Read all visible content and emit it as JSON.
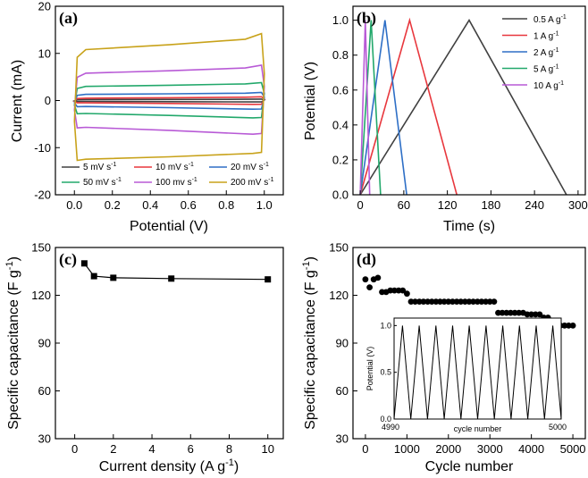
{
  "chart_data": [
    {
      "id": "a",
      "panel_label": "(a)",
      "type": "line",
      "title": "",
      "xlabel": "Potential (V)",
      "ylabel": "Current (mA)",
      "xlim": [
        -0.1,
        1.1
      ],
      "ylim": [
        -20,
        20
      ],
      "xticks": [
        0.0,
        0.2,
        0.4,
        0.6,
        0.8,
        1.0
      ],
      "xtick_labels": [
        "0.0",
        "0.2",
        "0.4",
        "0.6",
        "0.8",
        "1.0"
      ],
      "yticks": [
        -20,
        -10,
        0,
        10,
        20
      ],
      "ytick_labels": [
        "-20",
        "-10",
        "0",
        "10",
        "20"
      ],
      "legend_position": "bottom",
      "series": [
        {
          "name": "5 mV s⁻¹",
          "color": "#404040",
          "upper": [
            0.2,
            0.3
          ],
          "lower": [
            -0.2,
            -0.3
          ]
        },
        {
          "name": "10 mV s⁻¹",
          "color": "#e8373d",
          "upper": [
            0.5,
            0.8
          ],
          "lower": [
            -0.5,
            -0.8
          ]
        },
        {
          "name": "20 mV s⁻¹",
          "color": "#2e6fc6",
          "upper": [
            1.3,
            1.7
          ],
          "lower": [
            -1.3,
            -1.8
          ]
        },
        {
          "name": "50 mV s⁻¹",
          "color": "#22a86b",
          "upper": [
            3.0,
            3.8
          ],
          "lower": [
            -2.8,
            -3.6
          ]
        },
        {
          "name": "100 mv s⁻¹",
          "color": "#b85ad6",
          "upper": [
            5.8,
            7.5
          ],
          "lower": [
            -5.8,
            -7.0
          ]
        },
        {
          "name": "200 mV s⁻¹",
          "color": "#c8a21a",
          "upper": [
            10.8,
            14.2
          ],
          "lower": [
            -12.7,
            -11.0
          ]
        }
      ]
    },
    {
      "id": "b",
      "panel_label": "(b)",
      "type": "line",
      "title": "",
      "xlabel": "Time (s)",
      "ylabel": "Potential (V)",
      "xlim": [
        -10,
        310
      ],
      "ylim": [
        0,
        1.08
      ],
      "xticks": [
        0,
        60,
        120,
        180,
        240,
        300
      ],
      "xtick_labels": [
        "0",
        "60",
        "120",
        "180",
        "240",
        "300"
      ],
      "yticks": [
        0.0,
        0.2,
        0.4,
        0.6,
        0.8,
        1.0
      ],
      "ytick_labels": [
        "0.0",
        "0.2",
        "0.4",
        "0.6",
        "0.8",
        "1.0"
      ],
      "legend_position": "top-right",
      "series": [
        {
          "name": "0.5 A g⁻¹",
          "color": "#404040",
          "charge_end_s": 150,
          "discharge_end_s": 284
        },
        {
          "name": "1 A g⁻¹",
          "color": "#e8373d",
          "charge_end_s": 68,
          "discharge_end_s": 133
        },
        {
          "name": "2 A g⁻¹",
          "color": "#2e6fc6",
          "charge_end_s": 34,
          "discharge_end_s": 64
        },
        {
          "name": "5 A g⁻¹",
          "color": "#22a86b",
          "charge_end_s": 15,
          "discharge_end_s": 28
        },
        {
          "name": "10 A g⁻¹",
          "color": "#b85ad6",
          "charge_end_s": 7,
          "discharge_end_s": 13
        }
      ]
    },
    {
      "id": "c",
      "panel_label": "(c)",
      "type": "line",
      "title": "",
      "xlabel": "Current density (A g⁻¹)",
      "ylabel": "Specific capacitance (F g⁻¹)",
      "xlim": [
        -1,
        10.8
      ],
      "ylim": [
        30,
        150
      ],
      "xticks": [
        0,
        2,
        4,
        6,
        8,
        10
      ],
      "xtick_labels": [
        "0",
        "2",
        "4",
        "6",
        "8",
        "10"
      ],
      "yticks": [
        30,
        60,
        90,
        120,
        150
      ],
      "ytick_labels": [
        "30",
        "60",
        "90",
        "120",
        "150"
      ],
      "x": [
        0.5,
        1,
        2,
        5,
        10
      ],
      "y": [
        140,
        132,
        131,
        130.5,
        130
      ]
    },
    {
      "id": "d",
      "panel_label": "(d)",
      "type": "scatter",
      "title": "",
      "xlabel": "Cycle number",
      "ylabel": "Specific capacitance (F g⁻¹)",
      "xlim": [
        -300,
        5300
      ],
      "ylim": [
        30,
        150
      ],
      "xticks": [
        0,
        1000,
        2000,
        3000,
        4000,
        5000
      ],
      "xtick_labels": [
        "0",
        "1000",
        "2000",
        "3000",
        "4000",
        "5000"
      ],
      "yticks": [
        30,
        60,
        90,
        120,
        150
      ],
      "ytick_labels": [
        "30",
        "60",
        "90",
        "120",
        "150"
      ],
      "x": [
        0,
        100,
        200,
        300,
        400,
        500,
        600,
        700,
        800,
        900,
        1000,
        1100,
        1200,
        1300,
        1400,
        1500,
        1600,
        1700,
        1800,
        1900,
        2000,
        2100,
        2200,
        2300,
        2400,
        2500,
        2600,
        2700,
        2800,
        2900,
        3000,
        3100,
        3200,
        3300,
        3400,
        3500,
        3600,
        3700,
        3800,
        3900,
        4000,
        4100,
        4200,
        4300,
        4400,
        4500,
        4600,
        4700,
        4800,
        4900,
        5000
      ],
      "y": [
        130,
        125,
        130,
        131,
        122,
        122,
        123,
        123,
        123,
        123,
        121,
        116,
        116,
        116,
        116,
        116,
        116,
        116,
        116,
        116,
        116,
        116,
        116,
        116,
        116,
        116,
        116,
        116,
        116,
        116,
        116,
        116,
        109,
        109,
        109,
        109,
        109,
        109,
        109,
        108,
        108,
        108,
        108,
        106,
        106,
        102,
        101,
        101,
        101,
        101,
        101
      ],
      "inset": {
        "xlabel": "cycle number",
        "ylabel": "Potential (V)",
        "x_start_label": "4990",
        "x_end_label": "5000",
        "yticks": [
          0.0,
          0.5,
          1.0
        ],
        "ytick_labels": [
          "0.0",
          "0.5",
          "1.0"
        ],
        "cycles": 10
      }
    }
  ]
}
